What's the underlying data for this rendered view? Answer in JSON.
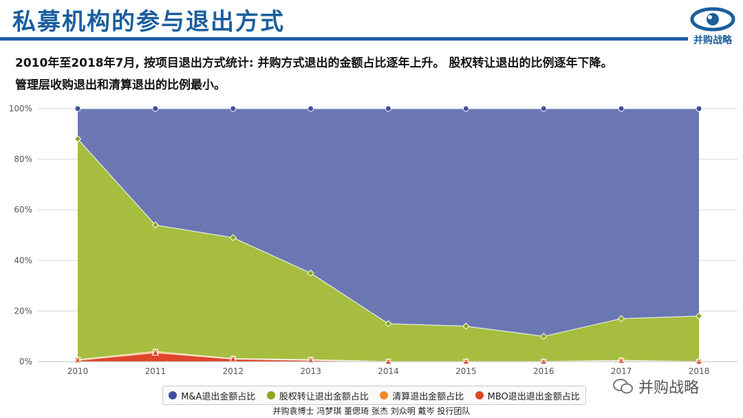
{
  "header": {
    "title": "私募机构的参与退出方式",
    "logo_text": "并购战略"
  },
  "subtitle": {
    "line1": "2010年至2018年7月, 按项目退出方式统计: 并购方式退出的金额占比逐年上升。 股权转让退出的比例逐年下降。",
    "line2": "管理层收购退出和清算退出的比例最小。"
  },
  "watermark": {
    "text": "并购战略"
  },
  "credits": {
    "text": "并购袁博士 冯梦琪 董偲琦 张杰 刘众明 戴岑 投行团队"
  },
  "colors": {
    "ma": "#6b77b3",
    "equity": "#a6bd3f",
    "liquidation": "#f08a24",
    "mbo": "#e0452b",
    "grid": "#d9d9d9",
    "axis_text": "#555555"
  },
  "chart_data": {
    "type": "area",
    "stacked": true,
    "x": [
      "2010",
      "2011",
      "2012",
      "2013",
      "2014",
      "2015",
      "2016",
      "2017",
      "2018"
    ],
    "ylim": [
      0,
      100
    ],
    "yticks": [
      "0%",
      "20%",
      "40%",
      "60%",
      "80%",
      "100%"
    ],
    "grid": true,
    "legend_position": "bottom",
    "series": [
      {
        "name": "M&A退出金额占比",
        "key": "ma",
        "cumulative": [
          100,
          100,
          100,
          100,
          100,
          100,
          100,
          100,
          100
        ]
      },
      {
        "name": "股权转让退出金额占比",
        "key": "equity",
        "cumulative": [
          88,
          54,
          49,
          35,
          15,
          14,
          10,
          17,
          18
        ]
      },
      {
        "name": "清算退出金额占比",
        "key": "liquidation",
        "cumulative": [
          0.8,
          4,
          1.2,
          0.8,
          0,
          0,
          0,
          0.5,
          0
        ]
      },
      {
        "name": "MBO退出退出金额占比",
        "key": "mbo",
        "cumulative": [
          0.5,
          3.5,
          1,
          0.5,
          0,
          0,
          0,
          0.3,
          0
        ]
      }
    ]
  }
}
